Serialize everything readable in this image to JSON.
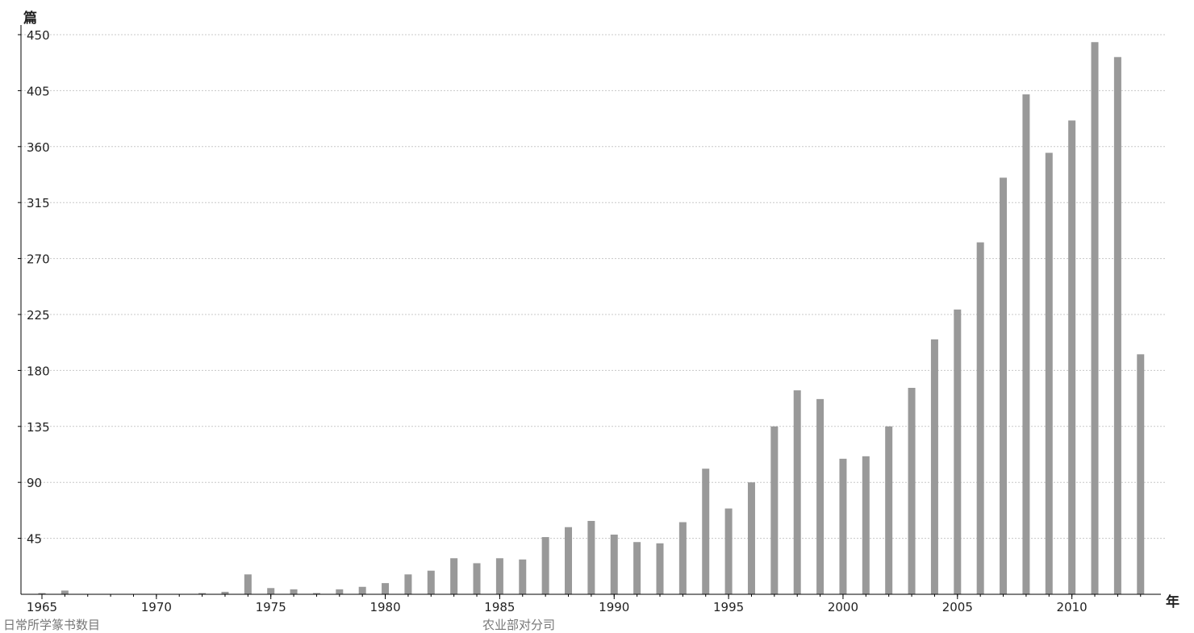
{
  "chart_data": {
    "type": "bar",
    "title": "",
    "xlabel": "年",
    "ylabel": "篇",
    "ylim": [
      0,
      450
    ],
    "yticks": [
      45,
      90,
      135,
      180,
      225,
      270,
      315,
      360,
      405,
      450
    ],
    "xticks": [
      1965,
      1970,
      1975,
      1980,
      1985,
      1990,
      1995,
      2000,
      2005,
      2010
    ],
    "grid": true,
    "legend": "none",
    "colors": {
      "bar": "#999999",
      "grid": "#c8c8c8",
      "axis": "#000000"
    },
    "x": [
      1965,
      1966,
      1967,
      1968,
      1969,
      1970,
      1971,
      1972,
      1973,
      1974,
      1975,
      1976,
      1977,
      1978,
      1979,
      1980,
      1981,
      1982,
      1983,
      1984,
      1985,
      1986,
      1987,
      1988,
      1989,
      1990,
      1991,
      1992,
      1993,
      1994,
      1995,
      1996,
      1997,
      1998,
      1999,
      2000,
      2001,
      2002,
      2003,
      2004,
      2005,
      2006,
      2007,
      2008,
      2009,
      2010,
      2011,
      2012,
      2013
    ],
    "values": [
      1,
      3,
      0,
      0,
      0,
      0,
      0,
      1,
      2,
      16,
      5,
      4,
      1,
      4,
      6,
      9,
      16,
      19,
      29,
      25,
      29,
      28,
      46,
      54,
      59,
      48,
      42,
      41,
      58,
      101,
      69,
      90,
      135,
      164,
      157,
      109,
      111,
      135,
      166,
      205,
      229,
      283,
      335,
      402,
      355,
      381,
      444,
      432,
      193
    ]
  },
  "footer": {
    "left_text": "日常所学篆书数目",
    "right_text": "农业部对分司"
  }
}
